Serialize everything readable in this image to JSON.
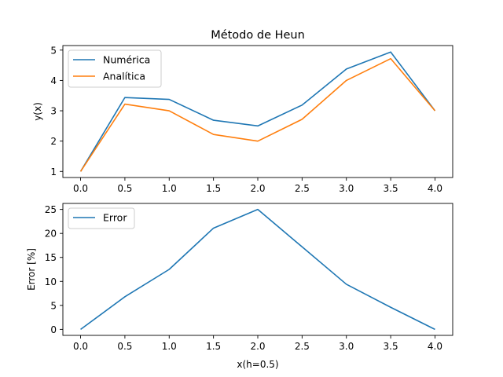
{
  "figure": {
    "title": "Método de Heun"
  },
  "chart_data": [
    {
      "type": "line",
      "title": "Método de Heun",
      "xlabel": "",
      "ylabel": "y(x)",
      "x": [
        0.0,
        0.5,
        1.0,
        1.5,
        2.0,
        2.5,
        3.0,
        3.5,
        4.0
      ],
      "xlim": [
        -0.2,
        4.2
      ],
      "ylim": [
        0.8,
        5.15
      ],
      "xticks": [
        0.0,
        0.5,
        1.0,
        1.5,
        2.0,
        2.5,
        3.0,
        3.5,
        4.0
      ],
      "xtick_labels": [
        "0.0",
        "0.5",
        "1.0",
        "1.5",
        "2.0",
        "2.5",
        "3.0",
        "3.5",
        "4.0"
      ],
      "yticks": [
        1,
        2,
        3,
        4,
        5
      ],
      "ytick_labels": [
        "1",
        "2",
        "3",
        "4",
        "5"
      ],
      "grid": false,
      "legend_position": "top-left",
      "series": [
        {
          "name": "Numérica",
          "color": "#1f77b4",
          "values": [
            1.0,
            3.4375,
            3.375,
            2.6875,
            2.5,
            3.1875,
            4.375,
            4.9375,
            3.0
          ]
        },
        {
          "name": "Analítica",
          "color": "#ff7f0e",
          "values": [
            1.0,
            3.21875,
            3.0,
            2.21875,
            2.0,
            2.71875,
            4.0,
            4.71875,
            3.0
          ]
        }
      ]
    },
    {
      "type": "line",
      "title": "",
      "xlabel": "x(h=0.5)",
      "ylabel": "Error [%]",
      "x": [
        0.0,
        0.5,
        1.0,
        1.5,
        2.0,
        2.5,
        3.0,
        3.5,
        4.0
      ],
      "xlim": [
        -0.2,
        4.2
      ],
      "ylim": [
        -1.25,
        26.25
      ],
      "xticks": [
        0.0,
        0.5,
        1.0,
        1.5,
        2.0,
        2.5,
        3.0,
        3.5,
        4.0
      ],
      "xtick_labels": [
        "0.0",
        "0.5",
        "1.0",
        "1.5",
        "2.0",
        "2.5",
        "3.0",
        "3.5",
        "4.0"
      ],
      "yticks": [
        0,
        5,
        10,
        15,
        20,
        25
      ],
      "ytick_labels": [
        "0",
        "5",
        "10",
        "15",
        "20",
        "25"
      ],
      "grid": false,
      "legend_position": "top-left",
      "series": [
        {
          "name": "Error",
          "color": "#1f77b4",
          "values": [
            0.0,
            6.8,
            12.5,
            21.1,
            25.0,
            17.2,
            9.4,
            4.6,
            0.0
          ]
        }
      ]
    }
  ]
}
